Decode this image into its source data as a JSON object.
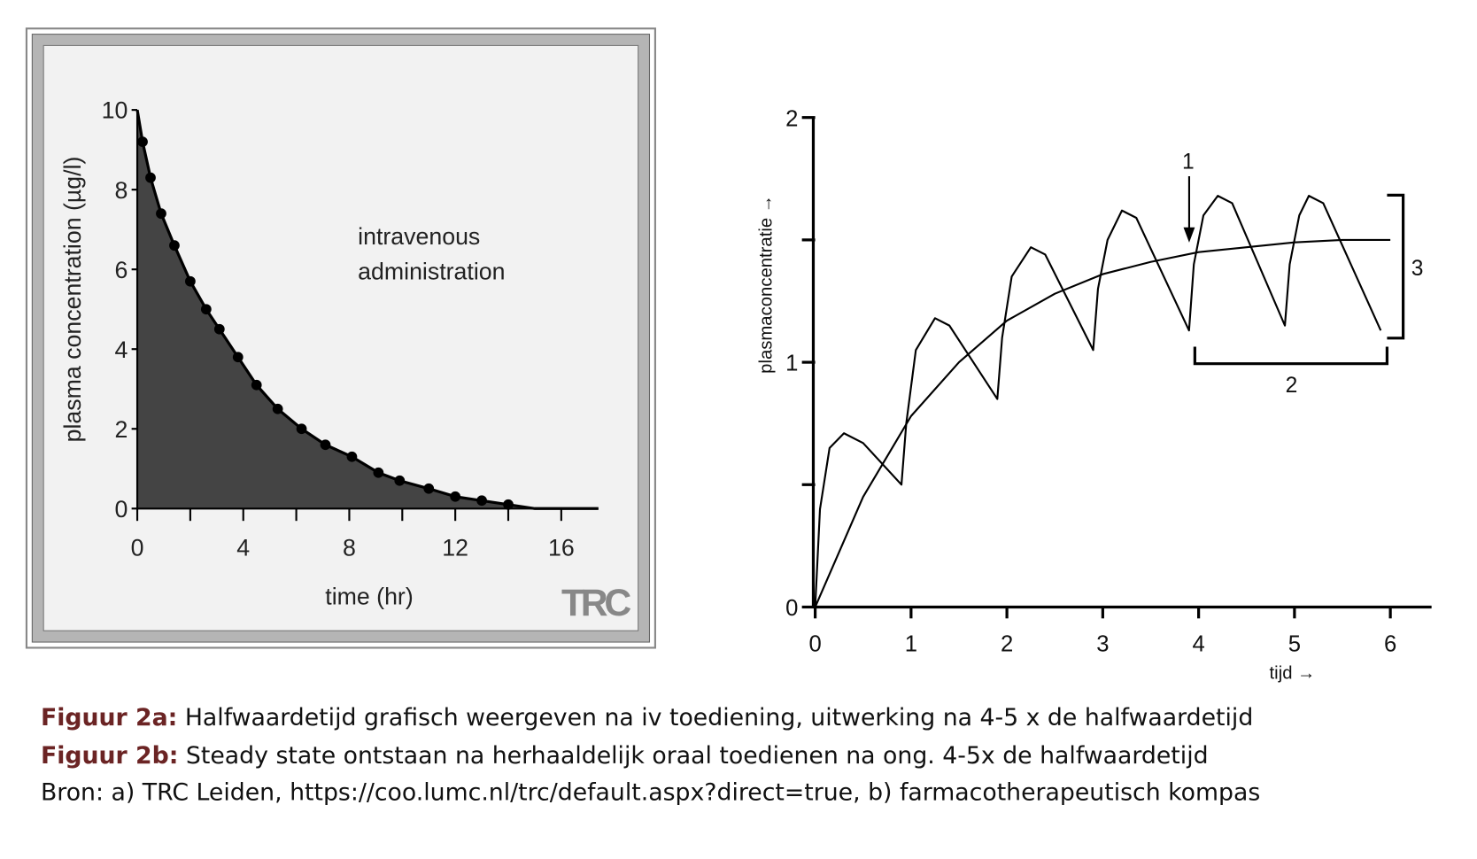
{
  "chart_data": [
    {
      "type": "area",
      "x": [
        0,
        0.2,
        0.5,
        0.9,
        1.4,
        2,
        2.6,
        3.1,
        3.8,
        4.5,
        5.3,
        6.2,
        7.1,
        8.1,
        9.1,
        9.9,
        11,
        12,
        13,
        14,
        15,
        17.4
      ],
      "values": [
        10,
        9.2,
        8.3,
        7.4,
        6.6,
        5.7,
        5.0,
        4.5,
        3.8,
        3.1,
        2.5,
        2.0,
        1.6,
        1.3,
        0.9,
        0.7,
        0.5,
        0.3,
        0.2,
        0.1,
        0,
        0
      ],
      "markers": {
        "x": [
          0.2,
          0.5,
          0.9,
          1.4,
          2,
          2.6,
          3.1,
          3.8,
          4.5,
          5.3,
          6.2,
          7.1,
          8.1,
          9.1,
          9.9,
          11,
          12,
          13,
          14
        ],
        "values": [
          9.2,
          8.3,
          7.4,
          6.6,
          5.7,
          5.0,
          4.5,
          3.8,
          3.1,
          2.5,
          2.0,
          1.6,
          1.3,
          0.9,
          0.7,
          0.5,
          0.3,
          0.2,
          0.1
        ]
      },
      "color": "#444444",
      "xlim": [
        0,
        17.4
      ],
      "ylim": [
        0,
        10
      ],
      "xticks": [
        0,
        4,
        8,
        12,
        16
      ],
      "xminor_ticks": [
        2,
        6,
        10,
        14
      ],
      "yticks": [
        0,
        2,
        4,
        6,
        8,
        10
      ],
      "x_label": "time (hr)",
      "y_label": "plasma concentration (µg/l)",
      "annotation": [
        "intravenous",
        "administration"
      ],
      "logo": "TRC"
    },
    {
      "type": "line",
      "series": [
        {
          "x": [
            0,
            0.05,
            0.15,
            0.3,
            0.5,
            0.9,
            0.95,
            1.05,
            1.25,
            1.4,
            1.9,
            1.95,
            2.05,
            2.25,
            2.4,
            2.9,
            2.95,
            3.05,
            3.2,
            3.35,
            3.9,
            3.95,
            4.05,
            4.2,
            4.35,
            4.9,
            4.95,
            5.05,
            5.15,
            5.3,
            5.9
          ],
          "values": [
            0,
            0.4,
            0.65,
            0.71,
            0.67,
            0.5,
            0.75,
            1.05,
            1.18,
            1.15,
            0.85,
            1.1,
            1.35,
            1.47,
            1.44,
            1.05,
            1.3,
            1.5,
            1.62,
            1.59,
            1.13,
            1.4,
            1.6,
            1.68,
            1.65,
            1.15,
            1.4,
            1.6,
            1.68,
            1.65,
            1.13
          ],
          "color": "#000000"
        },
        {
          "x": [
            0,
            0.5,
            1,
            1.5,
            2,
            2.5,
            3,
            3.5,
            4,
            4.5,
            5,
            5.5,
            6
          ],
          "values": [
            0,
            0.45,
            0.78,
            1.0,
            1.17,
            1.28,
            1.36,
            1.41,
            1.45,
            1.47,
            1.49,
            1.5,
            1.5
          ],
          "color": "#000000"
        }
      ],
      "xlim": [
        0,
        6.43
      ],
      "ylim": [
        0,
        2
      ],
      "xticks": [
        0,
        1,
        2,
        3,
        4,
        5,
        6
      ],
      "yticks": [
        0,
        1,
        2
      ],
      "yminor_ticks": [
        0.5,
        1.5
      ],
      "x_label": "tijd →",
      "y_label": "plasmaconcentratie →",
      "annotations": [
        "1",
        "2",
        "3"
      ]
    }
  ],
  "caption": [
    {
      "label": "Figuur 2a:",
      "text": " Halfwaardetijd grafisch weergeven na iv toediening, uitwerking na 4-5 x de halfwaardetijd"
    },
    {
      "label": "Figuur 2b:",
      "text": " Steady state ontstaan na herhaaldelijk oraal toedienen na ong. 4-5x de halfwaardetijd"
    },
    {
      "text": "Bron: a) TRC Leiden, https://coo.lumc.nl/trc/default.aspx?direct=true, b) farmacotherapeutisch kompas"
    }
  ]
}
